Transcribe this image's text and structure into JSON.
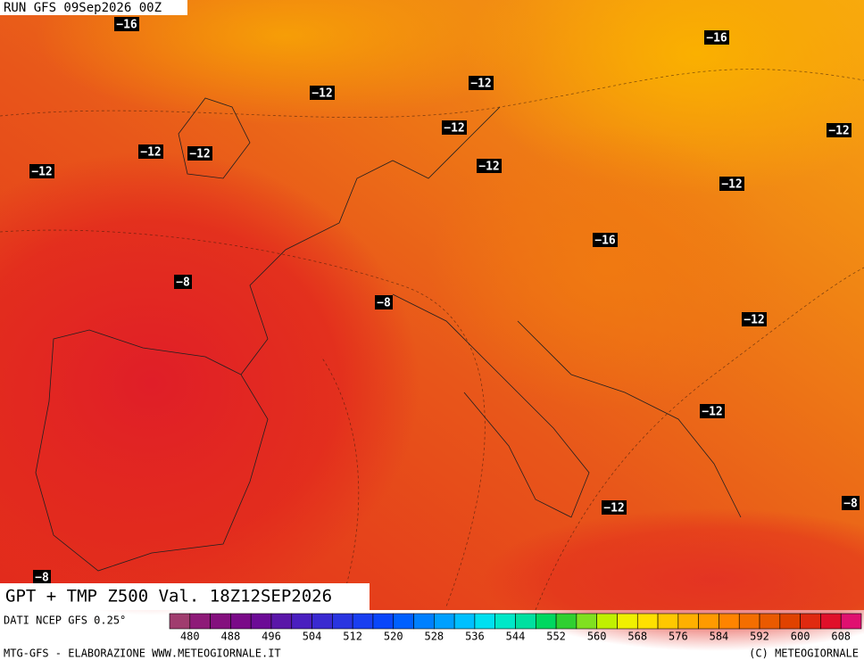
{
  "header": {
    "run": "RUN GFS 09Sep2026 00Z"
  },
  "labels": [
    "−16",
    "−16",
    "−12",
    "−12",
    "−12",
    "−12",
    "−12",
    "−12",
    "−12",
    "−12",
    "−12",
    "−8",
    "−8",
    "−16",
    "−12",
    "−12",
    "−12",
    "−8",
    "−8"
  ],
  "title": "GPT + TMP Z500 Val. 18Z12SEP2026",
  "legend": {
    "source": "DATI NCEP GFS 0.25°",
    "ticks": [
      480,
      488,
      496,
      504,
      512,
      520,
      528,
      536,
      544,
      552,
      560,
      568,
      576,
      584,
      592,
      600,
      608
    ],
    "colors": [
      "#a03c6e",
      "#8e1a78",
      "#84107e",
      "#7a0a88",
      "#6c0b96",
      "#5a16a8",
      "#4a1fbf",
      "#3a2ad0",
      "#2a35e0",
      "#1a3ff0",
      "#0a46fa",
      "#0060ff",
      "#0080ff",
      "#00a0ff",
      "#00c0ff",
      "#00e0f0",
      "#00e8c8",
      "#00e0a0",
      "#00d860",
      "#30d030",
      "#80e020",
      "#c0f000",
      "#f0f000",
      "#ffe000",
      "#ffc800",
      "#ffb000",
      "#ff9a00",
      "#ff8400",
      "#f46e00",
      "#ea5a00",
      "#e04200",
      "#e02a10",
      "#e0102a",
      "#e01070"
    ]
  },
  "footer": {
    "left": "MTG-GFS - ELABORAZIONE WWW.METEOGIORNALE.IT",
    "right": "(C) METEOGIORNALE"
  }
}
